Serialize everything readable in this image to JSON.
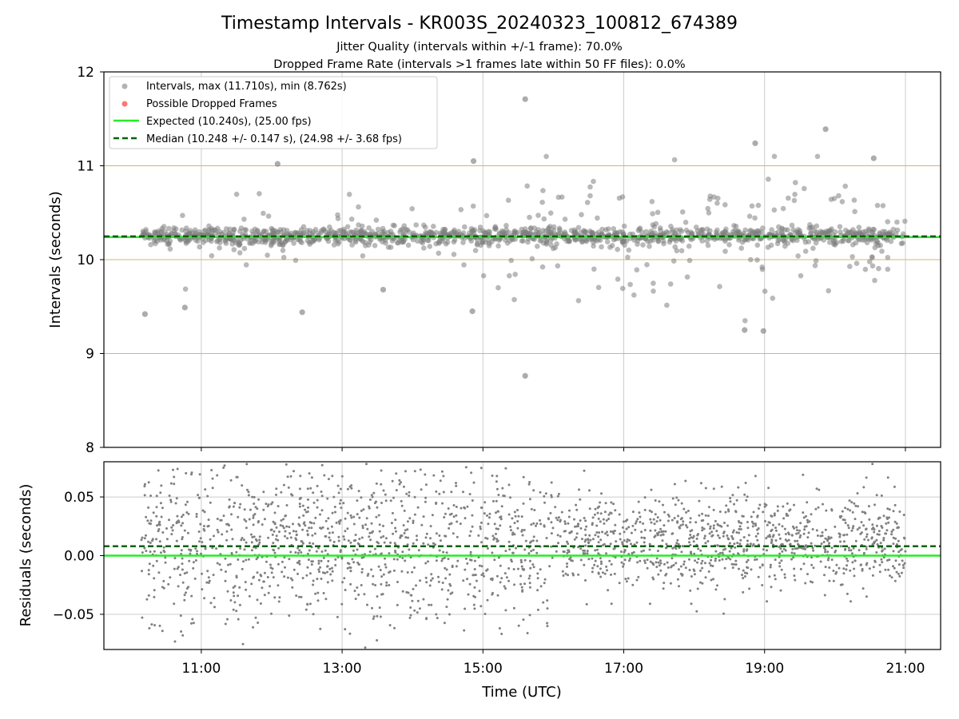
{
  "chart_data": [
    {
      "type": "scatter",
      "title": "Timestamp Intervals - KR003S_20240323_100812_674389",
      "subtitle_lines": [
        "Jitter Quality (intervals within +/-1 frame): 70.0%",
        "Dropped Frame Rate (intervals >1 frames late within 50 FF files): 0.0%"
      ],
      "xlabel": "",
      "ylabel": "Intervals (seconds)",
      "xlim": [
        "09:37",
        "21:30"
      ],
      "ylim": [
        8,
        12
      ],
      "x_ticks": [
        "11:00",
        "13:00",
        "15:00",
        "17:00",
        "19:00",
        "21:00"
      ],
      "y_ticks": [
        8,
        9,
        10,
        11,
        12
      ],
      "grid": true,
      "reference_lines_y": [
        9,
        10,
        11
      ],
      "legend": {
        "placement": "top-left",
        "entries": [
          "Intervals, max (11.710s), min (8.762s)",
          "Possible Dropped Frames",
          "Expected (10.240s), (25.00 fps)",
          "Median (10.248 +/- 0.147 s), (24.98 +/- 3.68 fps)"
        ]
      },
      "series": [
        {
          "name": "Intervals, max (11.710s), min (8.762s)",
          "marker": "circle",
          "x_range": [
            "10:09",
            "21:00"
          ],
          "typical_y_range": [
            10.15,
            10.35
          ],
          "outliers": [
            {
              "x": "10:12",
              "y": 9.42
            },
            {
              "x": "10:46",
              "y": 9.49
            },
            {
              "x": "12:26",
              "y": 9.44
            },
            {
              "x": "13:35",
              "y": 9.68
            },
            {
              "x": "14:51",
              "y": 9.45
            },
            {
              "x": "15:36",
              "y": 11.71
            },
            {
              "x": "15:36",
              "y": 8.762
            },
            {
              "x": "18:43",
              "y": 9.25
            },
            {
              "x": "18:52",
              "y": 11.24
            },
            {
              "x": "19:52",
              "y": 11.39
            },
            {
              "x": "20:33",
              "y": 11.08
            },
            {
              "x": "14:52",
              "y": 11.05
            },
            {
              "x": "12:05",
              "y": 11.02
            },
            {
              "x": "18:59",
              "y": 9.24
            }
          ]
        },
        {
          "name": "Possible Dropped Frames",
          "values": []
        }
      ],
      "lines": [
        {
          "name": "Expected (10.240s), (25.00 fps)",
          "y": 10.24,
          "style": "solid"
        },
        {
          "name": "Median (10.248 +/- 0.147 s), (24.98 +/- 3.68 fps)",
          "y": 10.248,
          "style": "dashed"
        }
      ]
    },
    {
      "type": "scatter",
      "xlabel": "Time (UTC)",
      "ylabel": "Residuals (seconds)",
      "xlim": [
        "09:37",
        "21:30"
      ],
      "ylim": [
        -0.08,
        0.08
      ],
      "x_ticks": [
        "11:00",
        "13:00",
        "15:00",
        "17:00",
        "19:00",
        "21:00"
      ],
      "y_ticks": [
        "0.05",
        "0.00",
        "−0.05"
      ],
      "grid": true,
      "series": [
        {
          "name": "",
          "marker": "dot",
          "x_range": [
            "10:09",
            "21:00"
          ],
          "y_distribution": "residuals spread between about -0.08 and 0.08, densest near +0.01 to +0.02, narrower spread after 16:00"
        }
      ],
      "lines": [
        {
          "name": "",
          "y": 0.0,
          "style": "solid"
        },
        {
          "name": "",
          "y": 0.008,
          "style": "dashed"
        }
      ]
    }
  ],
  "colors": {
    "points": "#808080",
    "dropped_frames": "#ff6666",
    "expected": "#22ee22",
    "median": "#006400",
    "reference_line": "#d8b46a",
    "grid": "#cccccc"
  }
}
